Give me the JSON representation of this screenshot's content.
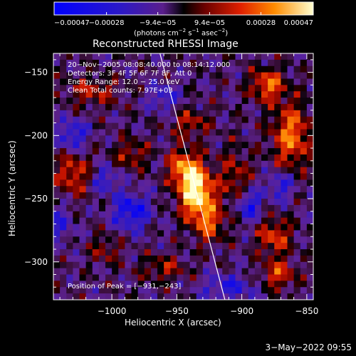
{
  "chart_data": {
    "type": "heatmap",
    "title": "Reconstructed RHESSI Image",
    "xlabel": "Heliocentric X (arcsec)",
    "ylabel": "Heliocentric Y (arcsec)",
    "xlim": [
      -1045,
      -845
    ],
    "ylim": [
      -330,
      -135
    ],
    "x_ticks": [
      -1000,
      -950,
      -900,
      -850
    ],
    "x_tick_labels": [
      "−1000",
      "−950",
      "−900",
      "−850"
    ],
    "y_ticks": [
      -150,
      -200,
      -250,
      -300
    ],
    "y_tick_labels": [
      "−150",
      "−200",
      "−250",
      "−300"
    ],
    "colorbar": {
      "min": -0.00047,
      "max": 0.00047,
      "ticks": [
        -0.00047,
        -0.00028,
        -9.4e-05,
        9.4e-05,
        0.00028,
        0.00047
      ],
      "tick_labels": [
        "−0.00047",
        "−0.00028",
        "−9.4e−05",
        "9.4e−05",
        "0.00028",
        "0.00047"
      ],
      "units_main": "(photons cm",
      "units_exp1": "−2",
      "units_mid": " s",
      "units_exp2": "−1",
      "units_mid2": " asec",
      "units_exp3": "−2",
      "units_end": ")"
    },
    "limb_line": [
      [
        -963,
        -135
      ],
      [
        -913,
        -330
      ]
    ],
    "peak_position": [
      -931,
      -243
    ],
    "blobs": [
      {
        "x": -935,
        "y": -245,
        "sx": 9,
        "sy": 14,
        "v": 0.0006
      },
      {
        "x": -945,
        "y": -225,
        "sx": 8,
        "sy": 10,
        "v": 0.00035
      },
      {
        "x": -925,
        "y": -270,
        "sx": 8,
        "sy": 10,
        "v": 0.00028
      },
      {
        "x": -880,
        "y": -160,
        "sx": 9,
        "sy": 9,
        "v": 0.00034
      },
      {
        "x": -862,
        "y": -200,
        "sx": 10,
        "sy": 18,
        "v": 0.00036
      },
      {
        "x": -875,
        "y": -280,
        "sx": 9,
        "sy": 10,
        "v": 0.00028
      },
      {
        "x": -872,
        "y": -310,
        "sx": 9,
        "sy": 8,
        "v": 0.00027
      },
      {
        "x": -1030,
        "y": -230,
        "sx": 9,
        "sy": 12,
        "v": 0.00027
      },
      {
        "x": -1015,
        "y": -165,
        "sx": 14,
        "sy": 8,
        "v": 0.0002
      },
      {
        "x": -985,
        "y": -215,
        "sx": 9,
        "sy": 8,
        "v": 0.0002
      },
      {
        "x": -905,
        "y": -235,
        "sx": 8,
        "sy": 18,
        "v": 0.0002
      },
      {
        "x": -960,
        "y": -305,
        "sx": 12,
        "sy": 7,
        "v": 0.00018
      },
      {
        "x": -1005,
        "y": -290,
        "sx": 8,
        "sy": 8,
        "v": 0.00016
      },
      {
        "x": -940,
        "y": -190,
        "sx": 10,
        "sy": 8,
        "v": 0.0002
      },
      {
        "x": -985,
        "y": -260,
        "sx": 10,
        "sy": 10,
        "v": -0.00032
      },
      {
        "x": -1030,
        "y": -200,
        "sx": 8,
        "sy": 9,
        "v": -0.00026
      },
      {
        "x": -895,
        "y": -255,
        "sx": 7,
        "sy": 9,
        "v": -0.0003
      },
      {
        "x": -870,
        "y": -240,
        "sx": 7,
        "sy": 8,
        "v": -0.00024
      },
      {
        "x": -910,
        "y": -320,
        "sx": 14,
        "sy": 7,
        "v": -0.00022
      },
      {
        "x": -1005,
        "y": -235,
        "sx": 7,
        "sy": 7,
        "v": -0.00022
      },
      {
        "x": -960,
        "y": -170,
        "sx": 8,
        "sy": 8,
        "v": -0.0002
      },
      {
        "x": -1040,
        "y": -270,
        "sx": 7,
        "sy": 10,
        "v": -0.00018
      }
    ]
  },
  "annotations": {
    "time_range": "20−Nov−2005 08:08:40.000 to 08:14:12.000",
    "detectors": "Detectors: 3F 4F 5F 6F 7F 8F, Att 0",
    "energy_range": "Energy Range: 12.0 − 25.0 keV",
    "clean_counts": "Clean     Total counts: 7.97E+03",
    "peak_label": "Position of Peak = [−931,−243]"
  },
  "timestamp": "3−May−2022 09:55"
}
